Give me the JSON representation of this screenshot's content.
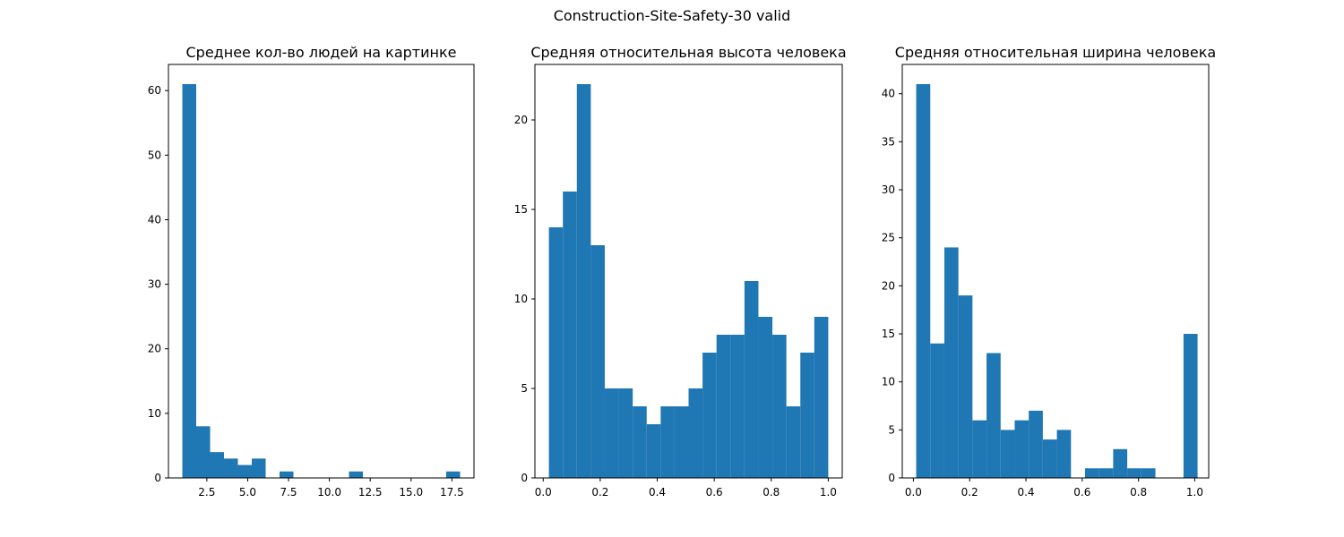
{
  "figure": {
    "suptitle": "Construction-Site-Safety-30 valid"
  },
  "colors": {
    "bar": "#1f77b4",
    "axes": "#000000",
    "background": "#ffffff"
  },
  "chart_data": [
    {
      "type": "bar",
      "title": "Среднее кол-во людей на картинке",
      "xlabel": "",
      "ylabel": "",
      "xlim": [
        0.15,
        18.85
      ],
      "ylim": [
        0,
        64.05
      ],
      "xticks": [
        2.5,
        5.0,
        7.5,
        10.0,
        12.5,
        15.0,
        17.5
      ],
      "xtick_labels": [
        "2.5",
        "5.0",
        "7.5",
        "10.0",
        "12.5",
        "15.0",
        "17.5"
      ],
      "yticks": [
        0,
        10,
        20,
        30,
        40,
        50,
        60
      ],
      "ytick_labels": [
        "0",
        "10",
        "20",
        "30",
        "40",
        "50",
        "60"
      ],
      "bin_edges": [
        1.0,
        1.85,
        2.7,
        3.55,
        4.4,
        5.25,
        6.1,
        6.95,
        7.8,
        8.65,
        9.5,
        10.35,
        11.2,
        12.05,
        12.9,
        13.75,
        14.6,
        15.45,
        16.3,
        17.15,
        18.0
      ],
      "values": [
        61,
        8,
        4,
        3,
        2,
        3,
        0,
        1,
        0,
        0,
        0,
        0,
        1,
        0,
        0,
        0,
        0,
        0,
        0,
        1
      ]
    },
    {
      "type": "bar",
      "title": "Средняя относительная высота человека",
      "xlabel": "",
      "ylabel": "",
      "xlim": [
        -0.0291,
        1.049
      ],
      "ylim": [
        0,
        23.1
      ],
      "xticks": [
        0.0,
        0.2,
        0.4,
        0.6,
        0.8,
        1.0
      ],
      "xtick_labels": [
        "0.0",
        "0.2",
        "0.4",
        "0.6",
        "0.8",
        "1.0"
      ],
      "yticks": [
        0,
        5,
        10,
        15,
        20
      ],
      "ytick_labels": [
        "0",
        "5",
        "10",
        "15",
        "20"
      ],
      "bin_edges": [
        0.02,
        0.069,
        0.118,
        0.167,
        0.216,
        0.265,
        0.314,
        0.363,
        0.412,
        0.461,
        0.51,
        0.559,
        0.608,
        0.657,
        0.706,
        0.755,
        0.804,
        0.853,
        0.902,
        0.951,
        1.0
      ],
      "values": [
        14,
        16,
        22,
        13,
        5,
        5,
        4,
        3,
        4,
        4,
        5,
        7,
        8,
        8,
        11,
        9,
        8,
        4,
        7,
        9
      ]
    },
    {
      "type": "bar",
      "title": "Средняя относительная ширина человека",
      "xlabel": "",
      "ylabel": "",
      "xlim": [
        -0.0395,
        1.0495
      ],
      "ylim": [
        0,
        43.05
      ],
      "xticks": [
        0.0,
        0.2,
        0.4,
        0.6,
        0.8,
        1.0
      ],
      "xtick_labels": [
        "0.0",
        "0.2",
        "0.4",
        "0.6",
        "0.8",
        "1.0"
      ],
      "yticks": [
        0,
        5,
        10,
        15,
        20,
        25,
        30,
        35,
        40
      ],
      "ytick_labels": [
        "0",
        "5",
        "10",
        "15",
        "20",
        "25",
        "30",
        "35",
        "40"
      ],
      "bin_edges": [
        0.01,
        0.06,
        0.11,
        0.16,
        0.21,
        0.26,
        0.31,
        0.36,
        0.41,
        0.46,
        0.51,
        0.56,
        0.61,
        0.66,
        0.71,
        0.76,
        0.81,
        0.86,
        0.91,
        0.96,
        1.01
      ],
      "values": [
        41,
        14,
        24,
        19,
        6,
        13,
        5,
        6,
        7,
        4,
        5,
        0,
        1,
        1,
        3,
        1,
        1,
        0,
        0,
        15
      ]
    }
  ]
}
